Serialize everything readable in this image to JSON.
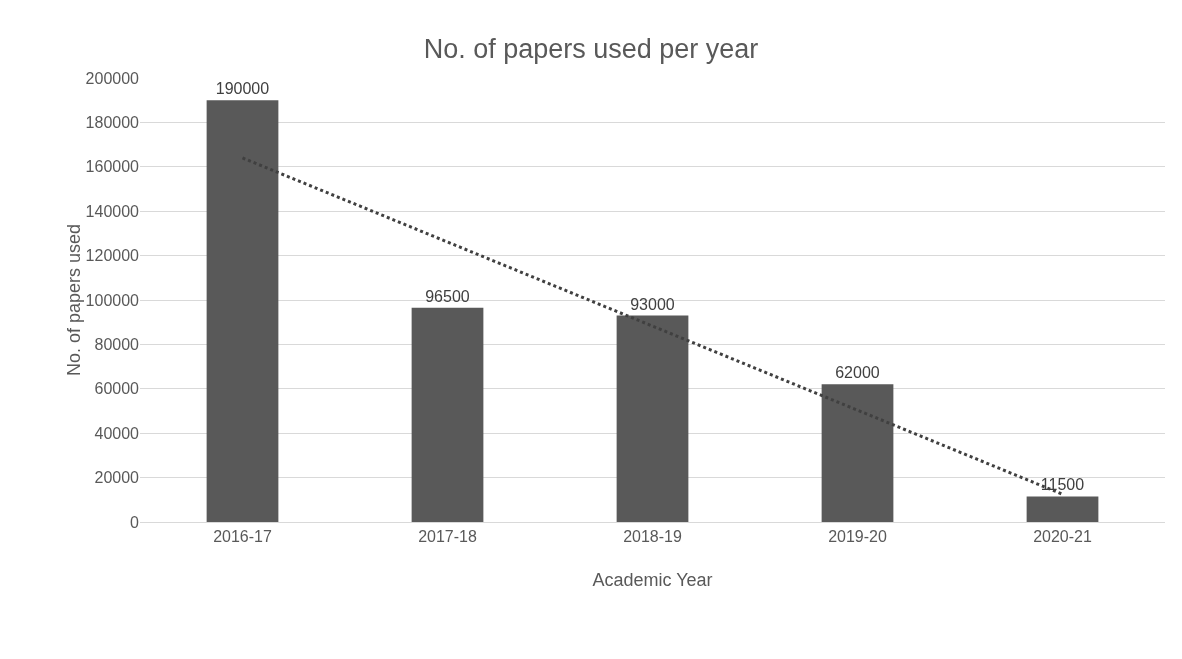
{
  "chart_data": {
    "type": "bar",
    "title": "No. of papers used per year",
    "xlabel": "Academic Year",
    "ylabel": "No. of papers used",
    "categories": [
      "2016-17",
      "2017-18",
      "2018-19",
      "2019-20",
      "2020-21"
    ],
    "series": [
      {
        "color": "#595959",
        "values": [
          190000,
          96500,
          93000,
          62000,
          11500
        ],
        "value_labels": [
          "190000",
          "96500",
          "93000",
          "62000",
          "11500"
        ]
      },
      {
        "type": "line",
        "x": [
          "2016-17",
          "2020-21"
        ],
        "values": [
          164000,
          12500
        ],
        "color": "#404040",
        "line_style": "dotted"
      }
    ],
    "ylim": [
      0,
      200000
    ],
    "yticks": [
      0,
      20000,
      40000,
      60000,
      80000,
      100000,
      120000,
      140000,
      160000,
      180000,
      200000
    ],
    "grid": "y"
  }
}
